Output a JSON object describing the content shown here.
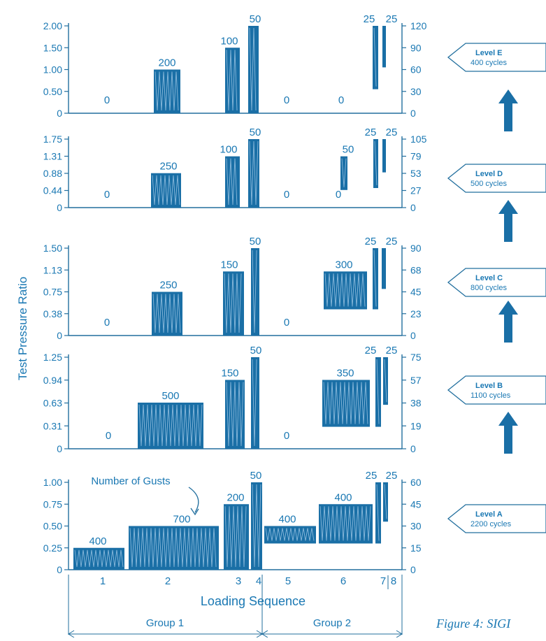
{
  "figure_caption": "Figure 4: SIGI",
  "colors": {
    "primary": "#1a6fa6",
    "stroke": "#226f9e",
    "text": "#1a78b3",
    "wave": "#9cc6e4"
  },
  "chart_data": {
    "type": "bar",
    "ylabel": "Test Pressure Ratio",
    "xlabel": "Loading Sequence",
    "categories": [
      "1",
      "2",
      "3",
      "4",
      "5",
      "6",
      "7",
      "8"
    ],
    "groups": [
      {
        "label": "Group 1",
        "sequences": [
          "1",
          "2",
          "3",
          "4"
        ]
      },
      {
        "label": "Group 2",
        "sequences": [
          "5",
          "6",
          "7",
          "8"
        ]
      }
    ],
    "annotation": "Number of Gusts",
    "panels": [
      {
        "level": "Level E",
        "cycles": "400 cycles",
        "yticks": [
          "0",
          "0.50",
          "1.00",
          "1.50",
          "2.00"
        ],
        "y2ticks": [
          "0",
          "30",
          "60",
          "90",
          "120"
        ],
        "ylim": [
          0,
          2.0
        ],
        "gusts": [
          "0",
          "200",
          "100",
          "50",
          "0",
          "0",
          "25",
          "25"
        ],
        "blocks": [
          {
            "seq": "1",
            "low": 0,
            "high": 0
          },
          {
            "seq": "2",
            "low": 0,
            "high": 1.0
          },
          {
            "seq": "3",
            "low": 0,
            "high": 1.5
          },
          {
            "seq": "4",
            "low": 0,
            "high": 2.0
          },
          {
            "seq": "5",
            "low": 0,
            "high": 0
          },
          {
            "seq": "6",
            "low": 0,
            "high": 0
          },
          {
            "seq": "7",
            "low": 0.55,
            "high": 2.0
          },
          {
            "seq": "8",
            "low": 1.05,
            "high": 2.0
          }
        ]
      },
      {
        "level": "Level D",
        "cycles": "500 cycles",
        "yticks": [
          "0",
          "0.44",
          "0.88",
          "1.31",
          "1.75"
        ],
        "y2ticks": [
          "0",
          "27",
          "53",
          "79",
          "105"
        ],
        "ylim": [
          0,
          1.75
        ],
        "gusts": [
          "0",
          "250",
          "100",
          "50",
          "0",
          "0",
          "50",
          "25",
          "25"
        ],
        "blocks": [
          {
            "seq": "1",
            "low": 0,
            "high": 0
          },
          {
            "seq": "2",
            "low": 0,
            "high": 0.88
          },
          {
            "seq": "3",
            "low": 0,
            "high": 1.31
          },
          {
            "seq": "4",
            "low": 0,
            "high": 1.75
          },
          {
            "seq": "5",
            "low": 0,
            "high": 0
          },
          {
            "seq": "6a",
            "low": 0,
            "high": 0
          },
          {
            "seq": "6b",
            "low": 0.45,
            "high": 1.31
          },
          {
            "seq": "7",
            "low": 0.5,
            "high": 1.75
          },
          {
            "seq": "8",
            "low": 0.9,
            "high": 1.75
          }
        ]
      },
      {
        "level": "Level C",
        "cycles": "800 cycles",
        "yticks": [
          "0",
          "0.38",
          "0.75",
          "1.13",
          "1.50"
        ],
        "y2ticks": [
          "0",
          "23",
          "45",
          "68",
          "90"
        ],
        "ylim": [
          0,
          1.5
        ],
        "gusts": [
          "0",
          "250",
          "150",
          "50",
          "0",
          "300",
          "25",
          "25"
        ],
        "blocks": [
          {
            "seq": "1",
            "low": 0,
            "high": 0
          },
          {
            "seq": "2",
            "low": 0,
            "high": 0.75
          },
          {
            "seq": "3",
            "low": 0,
            "high": 1.1
          },
          {
            "seq": "4",
            "low": 0,
            "high": 1.5
          },
          {
            "seq": "5",
            "low": 0,
            "high": 0
          },
          {
            "seq": "6",
            "low": 0.45,
            "high": 1.1
          },
          {
            "seq": "7",
            "low": 0.45,
            "high": 1.5
          },
          {
            "seq": "8",
            "low": 0.8,
            "high": 1.5
          }
        ]
      },
      {
        "level": "Level B",
        "cycles": "1100 cycles",
        "yticks": [
          "0",
          "0.31",
          "0.63",
          "0.94",
          "1.25"
        ],
        "y2ticks": [
          "0",
          "19",
          "38",
          "57",
          "75"
        ],
        "ylim": [
          0,
          1.25
        ],
        "gusts": [
          "0",
          "500",
          "150",
          "50",
          "0",
          "350",
          "25",
          "25"
        ],
        "blocks": [
          {
            "seq": "1",
            "low": 0,
            "high": 0
          },
          {
            "seq": "2",
            "low": 0,
            "high": 0.63
          },
          {
            "seq": "3",
            "low": 0,
            "high": 0.94
          },
          {
            "seq": "4",
            "low": 0,
            "high": 1.25
          },
          {
            "seq": "5",
            "low": 0,
            "high": 0
          },
          {
            "seq": "6",
            "low": 0.3,
            "high": 0.94
          },
          {
            "seq": "7",
            "low": 0.3,
            "high": 1.25
          },
          {
            "seq": "8",
            "low": 0.6,
            "high": 1.25
          }
        ]
      },
      {
        "level": "Level A",
        "cycles": "2200 cycles",
        "yticks": [
          "0",
          "0.25",
          "0.50",
          "0.75",
          "1.00"
        ],
        "y2ticks": [
          "0",
          "15",
          "30",
          "45",
          "60"
        ],
        "ylim": [
          0,
          1.0
        ],
        "gusts": [
          "400",
          "700",
          "200",
          "50",
          "400",
          "400",
          "25",
          "25"
        ],
        "blocks": [
          {
            "seq": "1",
            "low": 0,
            "high": 0.25
          },
          {
            "seq": "2",
            "low": 0,
            "high": 0.5
          },
          {
            "seq": "3",
            "low": 0,
            "high": 0.75
          },
          {
            "seq": "4",
            "low": 0,
            "high": 1.0
          },
          {
            "seq": "5",
            "low": 0.3,
            "high": 0.5
          },
          {
            "seq": "6",
            "low": 0.3,
            "high": 0.75
          },
          {
            "seq": "7",
            "low": 0.3,
            "high": 1.0
          },
          {
            "seq": "8",
            "low": 0.55,
            "high": 1.0
          }
        ]
      }
    ]
  }
}
